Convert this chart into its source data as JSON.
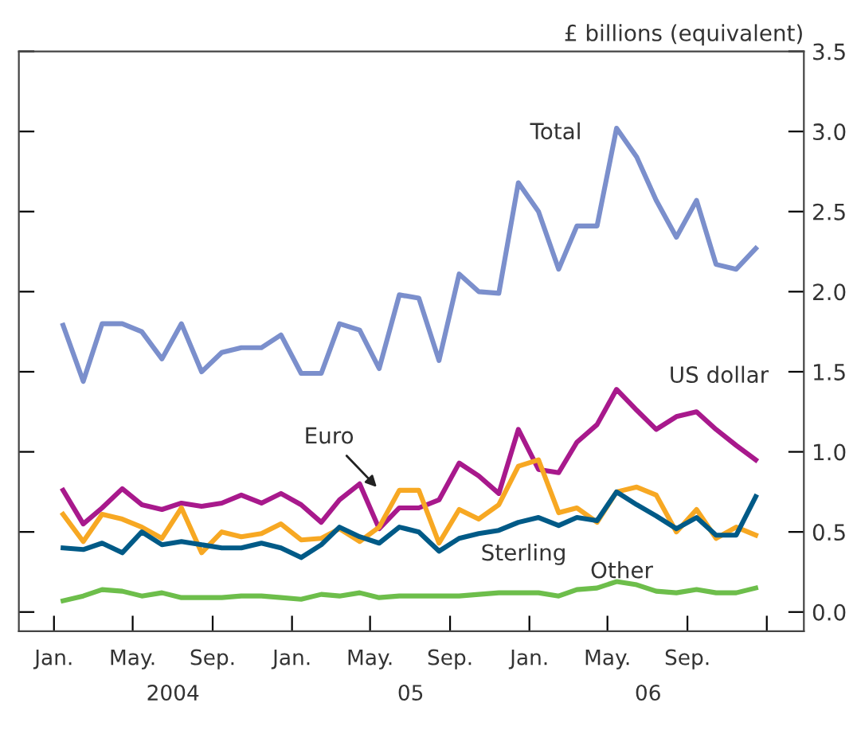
{
  "chart_data": {
    "type": "line",
    "ylabel": "£ billions (equivalent)",
    "x": [
      "2004-01-15",
      "2004-02-15",
      "2004-03-15",
      "2004-04-15",
      "2004-05-15",
      "2004-06-15",
      "2004-07-15",
      "2004-08-15",
      "2004-09-15",
      "2004-10-15",
      "2004-11-15",
      "2004-12-15",
      "2005-01-15",
      "2005-02-15",
      "2005-03-15",
      "2005-04-15",
      "2005-05-15",
      "2005-06-15",
      "2005-07-15",
      "2005-08-15",
      "2005-09-15",
      "2005-10-15",
      "2005-11-15",
      "2005-12-15",
      "2006-01-15",
      "2006-02-15",
      "2006-03-15",
      "2006-04-15",
      "2006-05-15",
      "2006-06-15",
      "2006-07-15",
      "2006-08-15",
      "2006-09-15",
      "2006-10-15",
      "2006-11-15",
      "2006-12-15"
    ],
    "series": [
      {
        "name": "Total",
        "color": "#7b8fcc",
        "values": [
          1.79,
          1.44,
          1.8,
          1.8,
          1.75,
          1.58,
          1.8,
          1.5,
          1.62,
          1.65,
          1.65,
          1.73,
          1.49,
          1.49,
          1.8,
          1.76,
          1.52,
          1.98,
          1.96,
          1.57,
          2.11,
          2.0,
          1.99,
          2.68,
          2.5,
          2.14,
          2.41,
          2.41,
          3.02,
          2.84,
          2.57,
          2.34,
          2.57,
          2.17,
          2.14,
          2.27
        ]
      },
      {
        "name": "US dollar",
        "color": "#a8198c",
        "values": [
          0.76,
          0.55,
          0.65,
          0.77,
          0.67,
          0.64,
          0.68,
          0.66,
          0.68,
          0.73,
          0.68,
          0.74,
          0.67,
          0.56,
          0.7,
          0.8,
          0.52,
          0.65,
          0.65,
          0.7,
          0.93,
          0.85,
          0.74,
          1.14,
          0.89,
          0.87,
          1.06,
          1.17,
          1.39,
          1.26,
          1.14,
          1.22,
          1.25,
          1.14,
          1.04,
          0.95
        ]
      },
      {
        "name": "Euro",
        "color": "#f7a823",
        "values": [
          0.61,
          0.44,
          0.61,
          0.58,
          0.53,
          0.46,
          0.65,
          0.37,
          0.5,
          0.47,
          0.49,
          0.55,
          0.45,
          0.46,
          0.52,
          0.44,
          0.53,
          0.76,
          0.76,
          0.43,
          0.64,
          0.58,
          0.67,
          0.91,
          0.95,
          0.62,
          0.65,
          0.56,
          0.75,
          0.78,
          0.73,
          0.5,
          0.64,
          0.46,
          0.53,
          0.48
        ]
      },
      {
        "name": "Sterling",
        "color": "#005a87",
        "values": [
          0.4,
          0.39,
          0.43,
          0.37,
          0.5,
          0.42,
          0.44,
          0.42,
          0.4,
          0.4,
          0.43,
          0.4,
          0.34,
          0.42,
          0.53,
          0.47,
          0.43,
          0.53,
          0.5,
          0.38,
          0.46,
          0.49,
          0.51,
          0.56,
          0.59,
          0.54,
          0.59,
          0.57,
          0.75,
          0.67,
          0.6,
          0.52,
          0.59,
          0.48,
          0.48,
          0.72
        ]
      },
      {
        "name": "Other",
        "color": "#6dbe4b",
        "values": [
          0.07,
          0.1,
          0.14,
          0.13,
          0.1,
          0.12,
          0.09,
          0.09,
          0.09,
          0.1,
          0.1,
          0.09,
          0.08,
          0.11,
          0.1,
          0.12,
          0.09,
          0.1,
          0.1,
          0.1,
          0.1,
          0.11,
          0.12,
          0.12,
          0.12,
          0.1,
          0.14,
          0.15,
          0.19,
          0.17,
          0.13,
          0.12,
          0.14,
          0.12,
          0.12,
          0.15
        ]
      }
    ],
    "xlim": [
      "2003-11-08",
      "2007-02-27"
    ],
    "xticks": [
      {
        "value": "2004-01-01",
        "label": "Jan."
      },
      {
        "value": "2004-05-01",
        "label": "May."
      },
      {
        "value": "2004-09-01",
        "label": "Sep."
      },
      {
        "value": "2005-01-01",
        "label": "Jan."
      },
      {
        "value": "2005-05-01",
        "label": "May."
      },
      {
        "value": "2005-09-01",
        "label": "Sep."
      },
      {
        "value": "2006-01-01",
        "label": "Jan."
      },
      {
        "value": "2006-05-01",
        "label": "May."
      },
      {
        "value": "2006-09-01",
        "label": "Sep."
      },
      {
        "value": "2007-01-01",
        "label": null
      }
    ],
    "ylim": [
      -0.12,
      3.5
    ],
    "yticks": [
      {
        "value": 0,
        "label": "0.0"
      },
      {
        "value": 0.5,
        "label": "0.5"
      },
      {
        "value": 1,
        "label": "1.0"
      },
      {
        "value": 1.5,
        "label": "1.5"
      },
      {
        "value": 2,
        "label": "2.0"
      },
      {
        "value": 2.5,
        "label": "2.5"
      },
      {
        "value": 3,
        "label": "3.0"
      },
      {
        "value": 3.5,
        "label": "3.5"
      }
    ],
    "annotations": [
      "2004",
      "05",
      "06"
    ],
    "grid": false,
    "marker": "none",
    "line_style": "solid"
  }
}
